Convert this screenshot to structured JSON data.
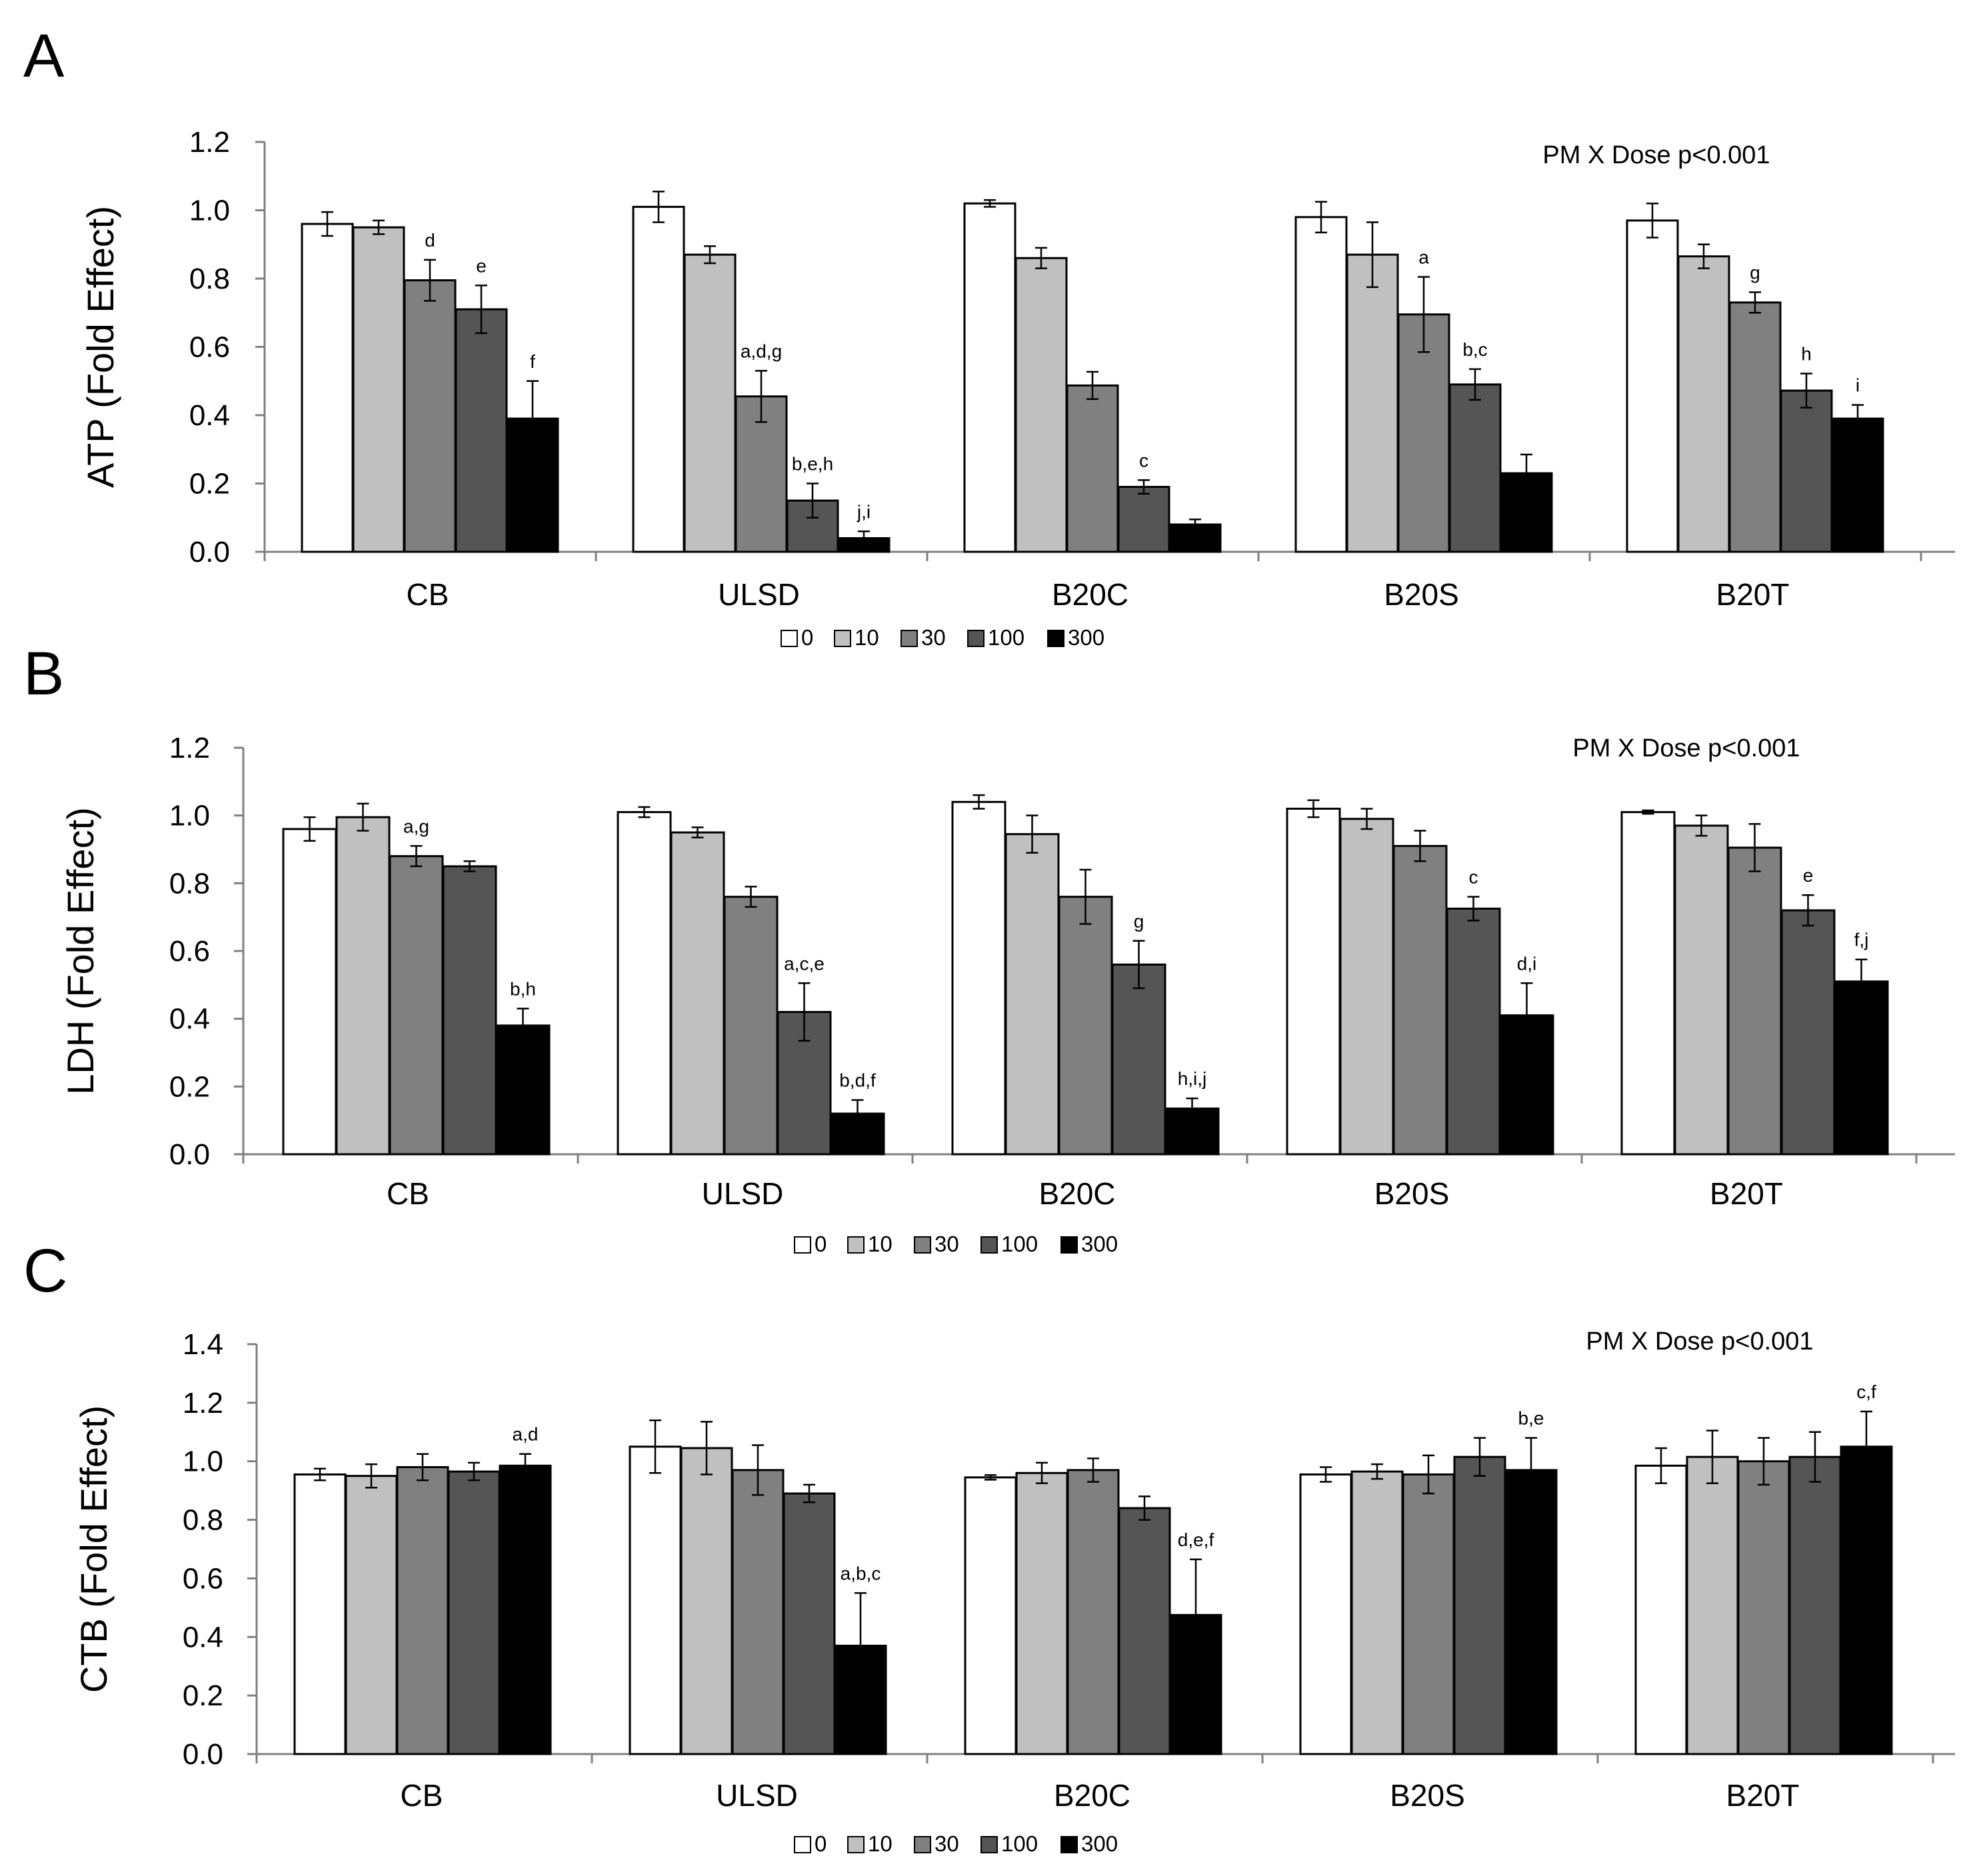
{
  "figure": {
    "legend": [
      {
        "label": "0",
        "color": "#ffffff"
      },
      {
        "label": "10",
        "color": "#c0c0c0"
      },
      {
        "label": "30",
        "color": "#808080"
      },
      {
        "label": "100",
        "color": "#555555"
      },
      {
        "label": "300",
        "color": "#000000"
      }
    ]
  },
  "chart_data": [
    {
      "type": "bar",
      "panel": "A",
      "ylabel": "ATP (Fold Effect)",
      "note": "PM X Dose p<0.001",
      "categories": [
        "CB",
        "ULSD",
        "B20C",
        "B20S",
        "B20T"
      ],
      "ylim": [
        0,
        1.2
      ],
      "yticks": [
        "0.0",
        "0.2",
        "0.4",
        "0.6",
        "0.8",
        "1.0",
        "1.2"
      ],
      "series": [
        {
          "name": "0",
          "values": [
            0.96,
            1.01,
            1.02,
            0.98,
            0.97
          ],
          "errors": [
            0.035,
            0.045,
            0.01,
            0.045,
            0.05
          ]
        },
        {
          "name": "10",
          "values": [
            0.95,
            0.87,
            0.86,
            0.87,
            0.865
          ],
          "errors": [
            0.02,
            0.025,
            0.03,
            0.095,
            0.035
          ]
        },
        {
          "name": "30",
          "values": [
            0.795,
            0.455,
            0.487,
            0.695,
            0.73
          ],
          "errors": [
            0.06,
            0.075,
            0.04,
            0.11,
            0.03
          ]
        },
        {
          "name": "100",
          "values": [
            0.71,
            0.15,
            0.19,
            0.49,
            0.472
          ],
          "errors": [
            0.07,
            0.05,
            0.02,
            0.045,
            0.05
          ]
        },
        {
          "name": "300",
          "values": [
            0.39,
            0.04,
            0.08,
            0.23,
            0.39
          ],
          "errors": [
            0.11,
            0.02,
            0.015,
            0.055,
            0.04
          ]
        }
      ],
      "annotations": [
        {
          "category": "CB",
          "series": "30",
          "text": "d"
        },
        {
          "category": "CB",
          "series": "100",
          "text": "e"
        },
        {
          "category": "CB",
          "series": "300",
          "text": "f"
        },
        {
          "category": "ULSD",
          "series": "30",
          "text": "a,d,g"
        },
        {
          "category": "ULSD",
          "series": "100",
          "text": "b,e,h"
        },
        {
          "category": "ULSD",
          "series": "300",
          "text": "j,i"
        },
        {
          "category": "B20C",
          "series": "100",
          "text": "c"
        },
        {
          "category": "B20S",
          "series": "30",
          "text": "a"
        },
        {
          "category": "B20S",
          "series": "100",
          "text": "b,c"
        },
        {
          "category": "B20T",
          "series": "30",
          "text": "g"
        },
        {
          "category": "B20T",
          "series": "100",
          "text": "h"
        },
        {
          "category": "B20T",
          "series": "300",
          "text": "i"
        }
      ]
    },
    {
      "type": "bar",
      "panel": "B",
      "ylabel": "LDH (Fold Effect)",
      "note": "PM X Dose p<0.001",
      "categories": [
        "CB",
        "ULSD",
        "B20C",
        "B20S",
        "B20T"
      ],
      "ylim": [
        0,
        1.2
      ],
      "yticks": [
        "0.0",
        "0.2",
        "0.4",
        "0.6",
        "0.8",
        "1.0",
        "1.2"
      ],
      "series": [
        {
          "name": "0",
          "values": [
            0.96,
            1.01,
            1.04,
            1.02,
            1.01
          ],
          "errors": [
            0.035,
            0.015,
            0.02,
            0.025,
            0.005
          ]
        },
        {
          "name": "10",
          "values": [
            0.995,
            0.95,
            0.945,
            0.99,
            0.97
          ],
          "errors": [
            0.04,
            0.015,
            0.055,
            0.03,
            0.03
          ]
        },
        {
          "name": "30",
          "values": [
            0.88,
            0.76,
            0.76,
            0.91,
            0.905
          ],
          "errors": [
            0.03,
            0.03,
            0.08,
            0.045,
            0.07
          ]
        },
        {
          "name": "100",
          "values": [
            0.85,
            0.42,
            0.56,
            0.725,
            0.72
          ],
          "errors": [
            0.015,
            0.085,
            0.07,
            0.035,
            0.045
          ]
        },
        {
          "name": "300",
          "values": [
            0.38,
            0.12,
            0.135,
            0.41,
            0.51
          ],
          "errors": [
            0.05,
            0.04,
            0.03,
            0.095,
            0.065
          ]
        }
      ],
      "annotations": [
        {
          "category": "CB",
          "series": "30",
          "text": "a,g"
        },
        {
          "category": "CB",
          "series": "300",
          "text": "b,h"
        },
        {
          "category": "ULSD",
          "series": "100",
          "text": "a,c,e"
        },
        {
          "category": "ULSD",
          "series": "300",
          "text": "b,d,f"
        },
        {
          "category": "B20C",
          "series": "100",
          "text": "g"
        },
        {
          "category": "B20C",
          "series": "300",
          "text": "h,i,j"
        },
        {
          "category": "B20S",
          "series": "100",
          "text": "c"
        },
        {
          "category": "B20S",
          "series": "300",
          "text": "d,i"
        },
        {
          "category": "B20T",
          "series": "100",
          "text": "e"
        },
        {
          "category": "B20T",
          "series": "300",
          "text": "f,j"
        }
      ]
    },
    {
      "type": "bar",
      "panel": "C",
      "ylabel": "CTB (Fold Effect)",
      "note": "PM X Dose p<0.001",
      "categories": [
        "CB",
        "ULSD",
        "B20C",
        "B20S",
        "B20T"
      ],
      "ylim": [
        0,
        1.4
      ],
      "yticks": [
        "0.0",
        "0.2",
        "0.4",
        "0.6",
        "0.8",
        "1.0",
        "1.2",
        "1.4"
      ],
      "series": [
        {
          "name": "0",
          "values": [
            0.955,
            1.05,
            0.945,
            0.955,
            0.985
          ],
          "errors": [
            0.02,
            0.09,
            0.008,
            0.025,
            0.06
          ]
        },
        {
          "name": "10",
          "values": [
            0.95,
            1.045,
            0.96,
            0.965,
            1.015
          ],
          "errors": [
            0.04,
            0.09,
            0.035,
            0.025,
            0.09
          ]
        },
        {
          "name": "30",
          "values": [
            0.98,
            0.97,
            0.97,
            0.955,
            1.0
          ],
          "errors": [
            0.045,
            0.085,
            0.04,
            0.065,
            0.08
          ]
        },
        {
          "name": "100",
          "values": [
            0.965,
            0.89,
            0.84,
            1.015,
            1.015
          ],
          "errors": [
            0.03,
            0.03,
            0.04,
            0.065,
            0.085
          ]
        },
        {
          "name": "300",
          "values": [
            0.985,
            0.37,
            0.475,
            0.97,
            1.05
          ],
          "errors": [
            0.04,
            0.18,
            0.19,
            0.11,
            0.12
          ]
        }
      ],
      "annotations": [
        {
          "category": "CB",
          "series": "300",
          "text": "a,d"
        },
        {
          "category": "ULSD",
          "series": "300",
          "text": "a,b,c"
        },
        {
          "category": "B20C",
          "series": "300",
          "text": "d,e,f"
        },
        {
          "category": "B20S",
          "series": "300",
          "text": "b,e"
        },
        {
          "category": "B20T",
          "series": "300",
          "text": "c,f"
        }
      ]
    }
  ]
}
